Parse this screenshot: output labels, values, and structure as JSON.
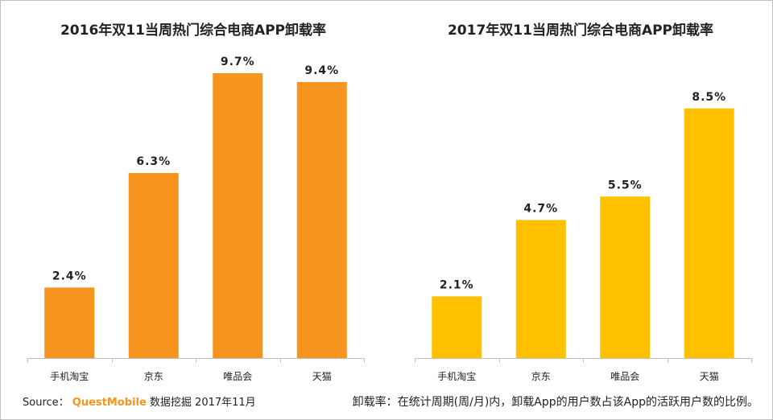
{
  "chart_data": [
    {
      "type": "bar",
      "title": "2016年双11当周热门综合电商APP卸载率",
      "categories": [
        "手机淘宝",
        "京东",
        "唯品会",
        "天猫"
      ],
      "values": [
        2.4,
        6.3,
        9.7,
        9.4
      ],
      "value_labels": [
        "2.4%",
        "6.3%",
        "9.7%",
        "9.4%"
      ],
      "ylim": [
        0,
        10
      ],
      "unit": "%",
      "color": "#f7941d",
      "grid": false
    },
    {
      "type": "bar",
      "title": "2017年双11当周热门综合电商APP卸载率",
      "categories": [
        "手机淘宝",
        "京东",
        "唯品会",
        "天猫"
      ],
      "values": [
        2.1,
        4.7,
        5.5,
        8.5
      ],
      "value_labels": [
        "2.1%",
        "4.7%",
        "5.5%",
        "8.5%"
      ],
      "ylim": [
        0,
        10
      ],
      "unit": "%",
      "color": "#ffc000",
      "grid": false
    }
  ],
  "footer": {
    "source_prefix": "Source：",
    "source_brand": "QuestMobile",
    "source_suffix": " 数据挖掘 2017年11月",
    "definition": "卸载率：在统计周期(周/月)内，卸载App的用户数占该App的活跃用户数的比例。"
  },
  "colors": {
    "axis": "#bfbfbf",
    "text": "#222222",
    "brand": "#f7941d"
  }
}
